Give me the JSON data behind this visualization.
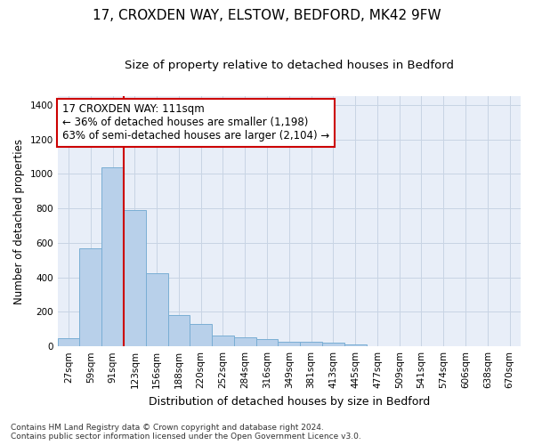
{
  "title1": "17, CROXDEN WAY, ELSTOW, BEDFORD, MK42 9FW",
  "title2": "Size of property relative to detached houses in Bedford",
  "xlabel": "Distribution of detached houses by size in Bedford",
  "ylabel": "Number of detached properties",
  "categories": [
    "27sqm",
    "59sqm",
    "91sqm",
    "123sqm",
    "156sqm",
    "188sqm",
    "220sqm",
    "252sqm",
    "284sqm",
    "316sqm",
    "349sqm",
    "381sqm",
    "413sqm",
    "445sqm",
    "477sqm",
    "509sqm",
    "541sqm",
    "574sqm",
    "606sqm",
    "638sqm",
    "670sqm"
  ],
  "values": [
    47,
    570,
    1040,
    790,
    425,
    180,
    130,
    65,
    50,
    42,
    28,
    27,
    20,
    10,
    0,
    0,
    0,
    0,
    0,
    0,
    0
  ],
  "bar_color": "#b8d0ea",
  "bar_edge_color": "#7aaed4",
  "vline_x": 2.5,
  "vline_color": "#cc0000",
  "annotation_line1": "17 CROXDEN WAY: 111sqm",
  "annotation_line2": "← 36% of detached houses are smaller (1,198)",
  "annotation_line3": "63% of semi-detached houses are larger (2,104) →",
  "annotation_box_color": "#cc0000",
  "ylim": [
    0,
    1450
  ],
  "yticks": [
    0,
    200,
    400,
    600,
    800,
    1000,
    1200,
    1400
  ],
  "grid_color": "#c8d4e4",
  "bg_color": "#e8eef8",
  "footnote1": "Contains HM Land Registry data © Crown copyright and database right 2024.",
  "footnote2": "Contains public sector information licensed under the Open Government Licence v3.0.",
  "title1_fontsize": 11,
  "title2_fontsize": 9.5,
  "xlabel_fontsize": 9,
  "ylabel_fontsize": 8.5,
  "tick_fontsize": 7.5,
  "annot_fontsize": 8.5,
  "footnote_fontsize": 6.5
}
